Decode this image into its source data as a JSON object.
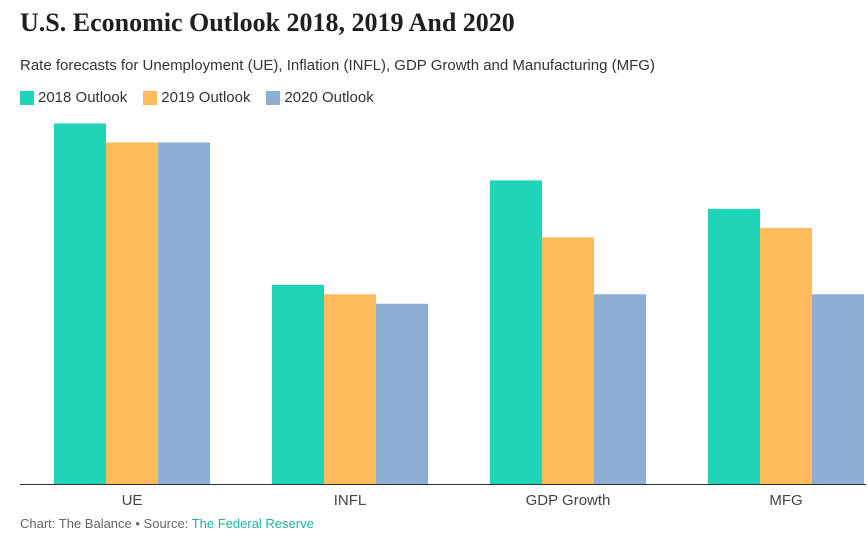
{
  "chart_data": {
    "type": "bar",
    "title": "U.S. Economic Outlook 2018, 2019 And 2020",
    "subtitle": "Rate forecasts for Unemployment (UE), Inflation (INFL), GDP Growth and Manufacturing (MFG)",
    "categories": [
      "UE",
      "INFL",
      "GDP Growth",
      "MFG"
    ],
    "series": [
      {
        "name": "2018 Outlook",
        "color": "#20d4b8",
        "values": [
          3.8,
          2.1,
          3.2,
          2.9
        ]
      },
      {
        "name": "2019 Outlook",
        "color": "#fdbb5c",
        "values": [
          3.6,
          2.0,
          2.6,
          2.7
        ]
      },
      {
        "name": "2020 Outlook",
        "color": "#8cafd3",
        "values": [
          3.6,
          1.9,
          2.0,
          2.0
        ]
      }
    ],
    "xlabel": "",
    "ylabel": "",
    "ylim": [
      0,
      3.9
    ],
    "grid": false,
    "legend_position": "top-left"
  },
  "footer": {
    "prefix": "Chart: The Balance • Source: ",
    "source": "The Federal Reserve"
  }
}
